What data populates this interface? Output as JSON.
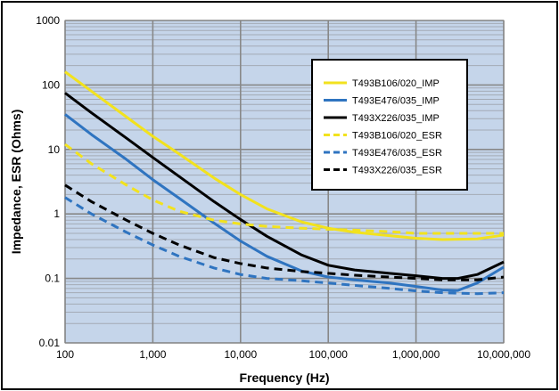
{
  "chart_data": {
    "type": "line",
    "title": "",
    "xlabel": "Frequency (Hz)",
    "ylabel": "Impedance, ESR (Ohms)",
    "xscale": "log",
    "yscale": "log",
    "xlim": [
      100,
      10000000
    ],
    "ylim": [
      0.01,
      1000
    ],
    "x_ticks": [
      100,
      1000,
      10000,
      100000,
      1000000,
      10000000
    ],
    "x_tick_labels": [
      "100",
      "1,000",
      "10,000",
      "100,000",
      "1,000,000",
      "10,000,000"
    ],
    "y_ticks": [
      0.01,
      0.1,
      1,
      10,
      100,
      1000
    ],
    "y_tick_labels": [
      "0.01",
      "0.1",
      "1",
      "10",
      "100",
      "1000"
    ],
    "grid": true,
    "plot_background": "#c5d5ea",
    "major_grid_color": "#888888",
    "minor_grid_color": "#a3aab5",
    "legend_position": "top-right",
    "series": [
      {
        "name": "T493B106/020_IMP",
        "color": "#f2e21e",
        "dash": "solid",
        "x": [
          100,
          200,
          500,
          1000,
          2000,
          5000,
          10000,
          20000,
          50000,
          100000,
          200000,
          500000,
          1000000,
          2000000,
          5000000,
          10000000
        ],
        "y": [
          160,
          80,
          32,
          16,
          8.5,
          3.6,
          2.0,
          1.2,
          0.75,
          0.6,
          0.52,
          0.46,
          0.42,
          0.4,
          0.41,
          0.47
        ]
      },
      {
        "name": "T493E476/035_IMP",
        "color": "#2f74c0",
        "dash": "solid",
        "x": [
          100,
          200,
          500,
          1000,
          2000,
          5000,
          10000,
          20000,
          50000,
          100000,
          200000,
          500000,
          1000000,
          2000000,
          3000000,
          5000000,
          10000000
        ],
        "y": [
          35,
          17,
          7,
          3.4,
          1.75,
          0.72,
          0.38,
          0.22,
          0.13,
          0.105,
          0.095,
          0.085,
          0.075,
          0.066,
          0.065,
          0.085,
          0.15
        ]
      },
      {
        "name": "T493X226/035_IMP",
        "color": "#000000",
        "dash": "solid",
        "x": [
          100,
          200,
          500,
          1000,
          2000,
          5000,
          10000,
          20000,
          50000,
          100000,
          200000,
          500000,
          1000000,
          2000000,
          3000000,
          5000000,
          10000000
        ],
        "y": [
          75,
          37,
          15,
          7.5,
          3.8,
          1.55,
          0.82,
          0.45,
          0.23,
          0.16,
          0.135,
          0.12,
          0.11,
          0.1,
          0.1,
          0.115,
          0.18
        ]
      },
      {
        "name": "T493B106/020_ESR",
        "color": "#f2e21e",
        "dash": "dashed",
        "x": [
          100,
          200,
          500,
          1000,
          2000,
          5000,
          10000,
          20000,
          50000,
          100000,
          200000,
          500000,
          1000000,
          2000000,
          5000000,
          10000000
        ],
        "y": [
          12,
          6,
          2.8,
          1.65,
          1.1,
          0.8,
          0.7,
          0.64,
          0.6,
          0.58,
          0.56,
          0.53,
          0.5,
          0.5,
          0.5,
          0.5
        ]
      },
      {
        "name": "T493E476/035_ESR",
        "color": "#2f74c0",
        "dash": "dashed",
        "x": [
          100,
          200,
          500,
          1000,
          2000,
          5000,
          10000,
          20000,
          50000,
          100000,
          200000,
          500000,
          1000000,
          2000000,
          5000000,
          10000000
        ],
        "y": [
          1.8,
          1.0,
          0.52,
          0.33,
          0.22,
          0.145,
          0.115,
          0.1,
          0.092,
          0.085,
          0.078,
          0.07,
          0.064,
          0.06,
          0.058,
          0.06
        ]
      },
      {
        "name": "T493X226/035_ESR",
        "color": "#000000",
        "dash": "dashed",
        "x": [
          100,
          200,
          500,
          1000,
          2000,
          5000,
          10000,
          20000,
          50000,
          100000,
          200000,
          500000,
          1000000,
          2000000,
          5000000,
          10000000
        ],
        "y": [
          2.8,
          1.55,
          0.8,
          0.5,
          0.33,
          0.21,
          0.17,
          0.145,
          0.128,
          0.12,
          0.112,
          0.105,
          0.1,
          0.095,
          0.095,
          0.105
        ]
      }
    ]
  }
}
